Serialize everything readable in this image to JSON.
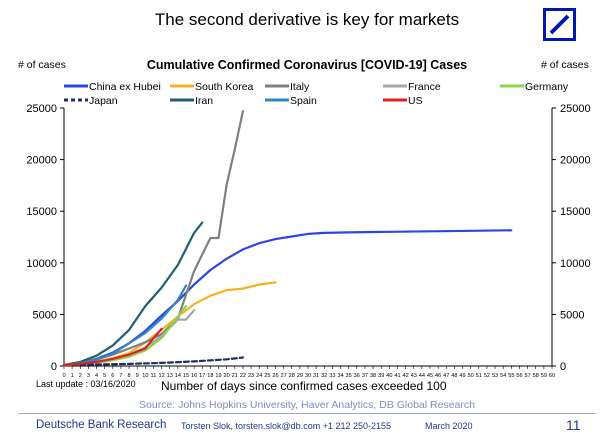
{
  "headline": "The second derivative is key for markets",
  "logo_color": "#0018A8",
  "footer": {
    "org": "Deutsche Bank Research",
    "author": "Torsten Slok, torsten.slok@db.com  +1 212 250-2155",
    "date": "March 2020",
    "page": "11"
  },
  "chart_data": {
    "type": "line",
    "title": "Cumulative Confirmed Coronavirus [COVID-19] Cases",
    "ylabel_left": "# of cases",
    "ylabel_right": "# of cases",
    "xlabel": "Number of days since confirmed cases exceeded 100",
    "last_update": "Last update : 03/16/2020",
    "source": "Source: Johns Hopkins University, Haver Analytics, DB Global Research",
    "ylim": [
      0,
      25000
    ],
    "yticks": [
      0,
      5000,
      10000,
      15000,
      20000,
      25000
    ],
    "ytick_labels": [
      "0",
      "5000",
      "10000",
      "15000",
      "20000",
      "25000"
    ],
    "xlim": [
      0,
      60
    ],
    "xticks": [
      0,
      1,
      2,
      3,
      4,
      5,
      6,
      7,
      8,
      9,
      10,
      11,
      12,
      13,
      14,
      15,
      16,
      17,
      18,
      19,
      20,
      21,
      22,
      23,
      24,
      25,
      26,
      27,
      28,
      29,
      30,
      31,
      32,
      33,
      34,
      35,
      36,
      37,
      38,
      39,
      40,
      41,
      42,
      43,
      44,
      45,
      46,
      47,
      48,
      49,
      50,
      51,
      52,
      53,
      54,
      55,
      56,
      57,
      58,
      59,
      60
    ],
    "grid": false,
    "legend_position": "top",
    "series": [
      {
        "name": "China ex Hubei",
        "color": "#2d46e3",
        "dash": "solid",
        "x": [
          0,
          2,
          4,
          6,
          8,
          10,
          12,
          14,
          16,
          18,
          20,
          22,
          24,
          26,
          28,
          30,
          32,
          35,
          40,
          45,
          50,
          55
        ],
        "y": [
          100,
          300,
          700,
          1300,
          2200,
          3400,
          4900,
          6300,
          7900,
          9300,
          10400,
          11300,
          11900,
          12300,
          12550,
          12800,
          12900,
          12950,
          13000,
          13050,
          13100,
          13150
        ]
      },
      {
        "name": "South Korea",
        "color": "#f5b324",
        "dash": "solid",
        "x": [
          0,
          2,
          4,
          6,
          8,
          10,
          12,
          14,
          16,
          18,
          20,
          22,
          24,
          26
        ],
        "y": [
          100,
          200,
          430,
          760,
          1250,
          2300,
          3500,
          4800,
          6000,
          6800,
          7350,
          7500,
          7900,
          8100
        ]
      },
      {
        "name": "Italy",
        "color": "#7f7f7f",
        "dash": "solid",
        "x": [
          0,
          2,
          4,
          6,
          8,
          10,
          12,
          14,
          16,
          18,
          19,
          20,
          21,
          22
        ],
        "y": [
          100,
          300,
          650,
          1100,
          1700,
          2300,
          3100,
          4600,
          9200,
          12400,
          12400,
          17600,
          21000,
          24700
        ]
      },
      {
        "name": "France",
        "color": "#a6a6a6",
        "dash": "solid",
        "x": [
          0,
          2,
          4,
          6,
          8,
          10,
          12,
          14,
          15,
          16
        ],
        "y": [
          100,
          200,
          300,
          600,
          1100,
          1800,
          2900,
          4500,
          4500,
          5400
        ]
      },
      {
        "name": "Germany",
        "color": "#92d050",
        "dash": "solid",
        "x": [
          0,
          2,
          4,
          6,
          8,
          10,
          12,
          13,
          14,
          15
        ],
        "y": [
          100,
          150,
          300,
          550,
          900,
          1500,
          2700,
          3700,
          4800,
          5800
        ]
      },
      {
        "name": "Japan",
        "color": "#1f2d6b",
        "dash": "dashed",
        "x": [
          0,
          4,
          8,
          12,
          16,
          20,
          22
        ],
        "y": [
          100,
          150,
          200,
          300,
          450,
          650,
          820
        ]
      },
      {
        "name": "Iran",
        "color": "#1f5f6e",
        "dash": "solid",
        "x": [
          0,
          2,
          4,
          6,
          8,
          10,
          12,
          14,
          16,
          17
        ],
        "y": [
          100,
          400,
          1000,
          2000,
          3500,
          5800,
          7600,
          9800,
          12900,
          13900
        ]
      },
      {
        "name": "Spain",
        "color": "#2e86c1",
        "dash": "solid",
        "x": [
          0,
          2,
          4,
          6,
          8,
          10,
          12,
          14,
          15
        ],
        "y": [
          100,
          250,
          600,
          1200,
          2200,
          3200,
          4600,
          6400,
          7800
        ]
      },
      {
        "name": "US",
        "color": "#e02020",
        "dash": "solid",
        "x": [
          0,
          2,
          4,
          6,
          8,
          10,
          11,
          12
        ],
        "y": [
          100,
          200,
          400,
          700,
          1100,
          1700,
          2700,
          3600
        ]
      }
    ]
  }
}
